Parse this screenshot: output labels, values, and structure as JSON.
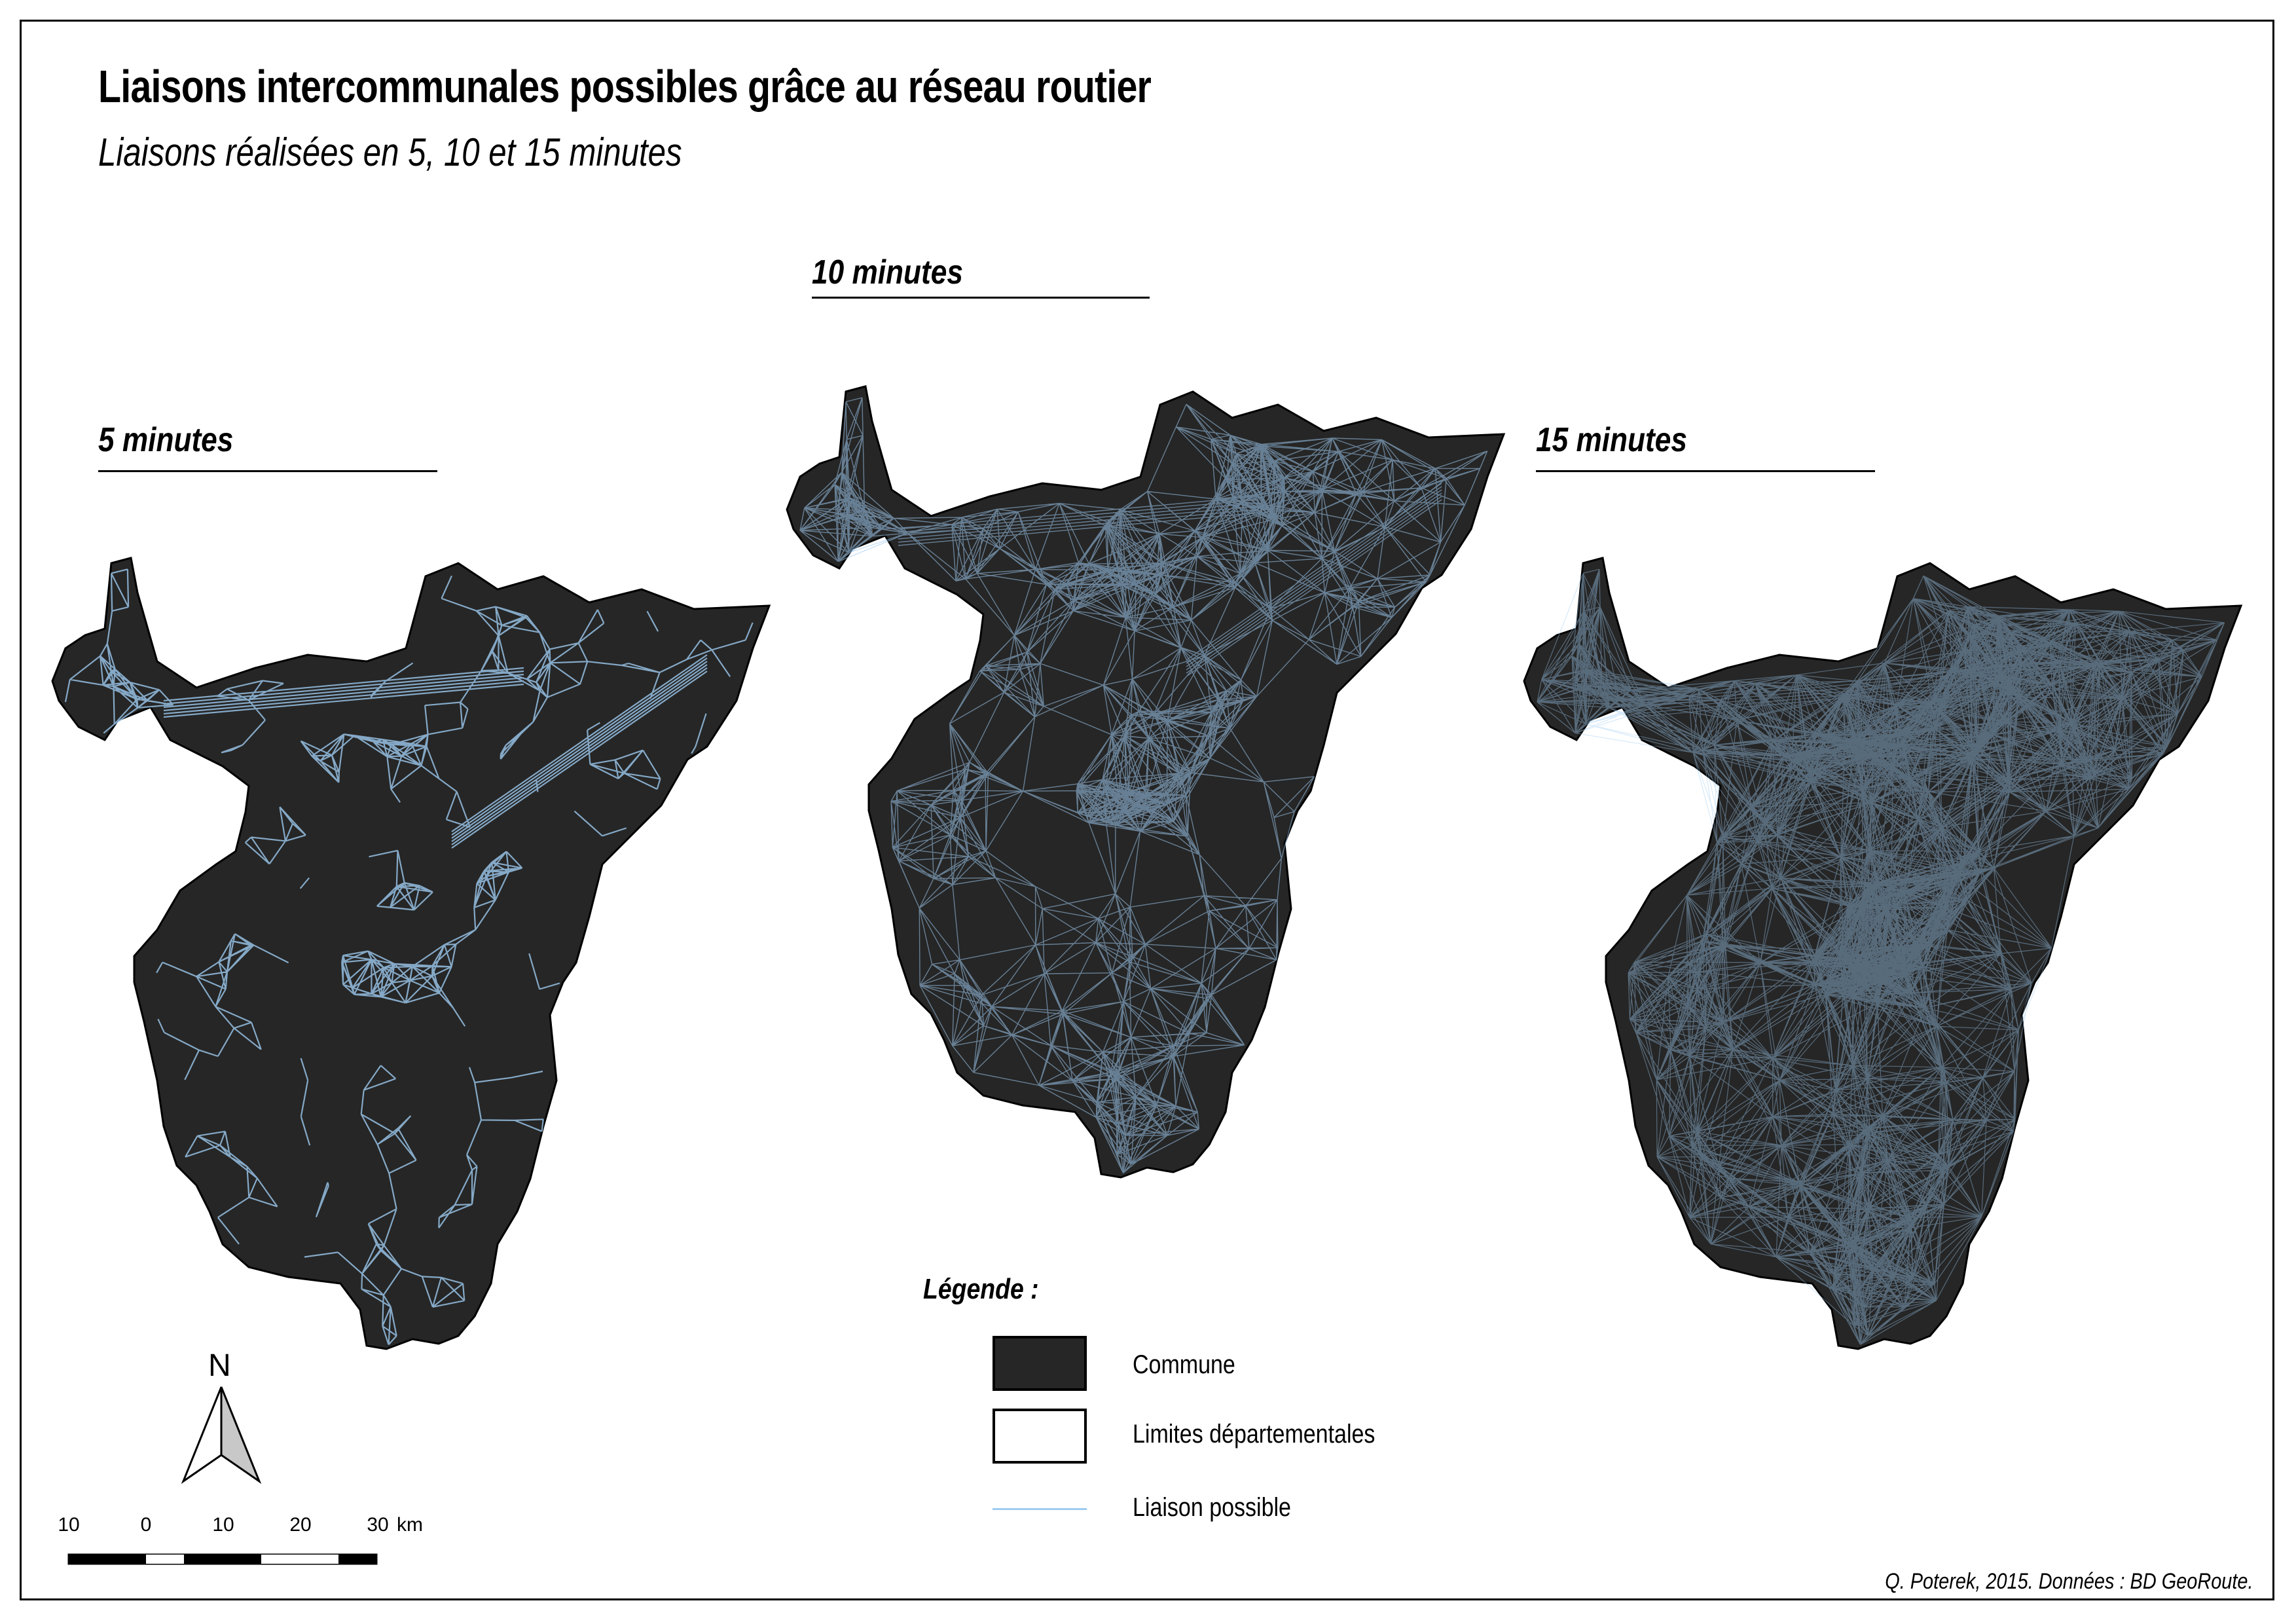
{
  "title": "Liaisons intercommunales possibles grâce au réseau routier",
  "subtitle": "Liaisons réalisées en 5, 10 et 15 minutes",
  "panels": [
    {
      "label": "5 minutes"
    },
    {
      "label": "10 minutes"
    },
    {
      "label": "15 minutes"
    }
  ],
  "legend": {
    "title": "Légende :",
    "items": [
      {
        "label": "Commune"
      },
      {
        "label": "Limites départementales"
      },
      {
        "label": "Liaison possible"
      }
    ]
  },
  "north_label": "N",
  "scale": {
    "ticks": [
      "10",
      "0",
      "10",
      "20",
      "30"
    ],
    "unit": "km"
  },
  "credit": "Q. Poterek, 2015. Données : BD GeoRoute.",
  "colors": {
    "commune": "#262626",
    "liaison": "#9ecbf0",
    "border": "#000000"
  }
}
